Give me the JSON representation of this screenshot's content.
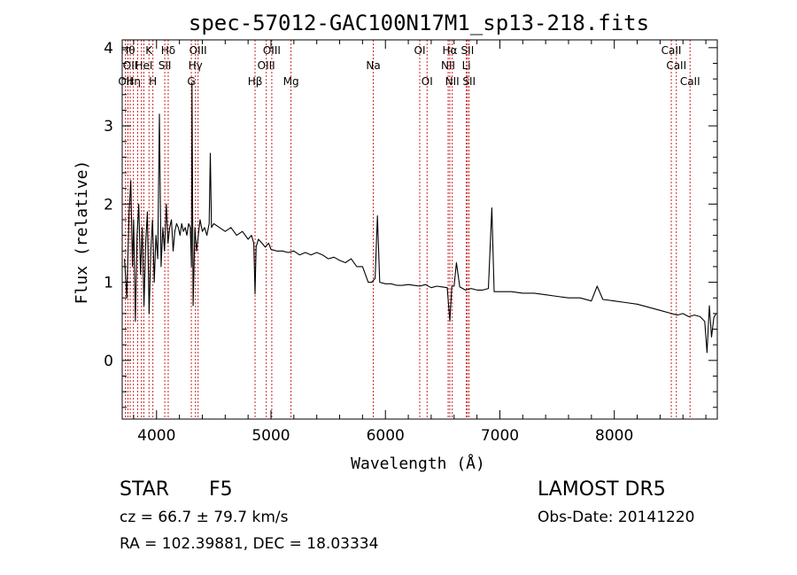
{
  "chart_data": {
    "type": "line",
    "title": "spec-57012-GAC100N17M1_sp13-218.fits",
    "xlabel": "Wavelength (Å)",
    "ylabel": "Flux (relative)",
    "xlim": [
      3700,
      8900
    ],
    "ylim": [
      -0.75,
      4.1
    ],
    "xticks": [
      "4000",
      "5000",
      "6000",
      "7000",
      "8000"
    ],
    "yticks": [
      "0",
      "1",
      "2",
      "3",
      "4"
    ],
    "line_color": "#000000",
    "marker_color": "#cc2222",
    "series": [
      {
        "x": [
          3720,
          3740,
          3760,
          3775,
          3790,
          3800,
          3815,
          3830,
          3845,
          3860,
          3875,
          3890,
          3905,
          3920,
          3935,
          3950,
          3965,
          3980,
          3995,
          4010,
          4025,
          4040,
          4055,
          4070,
          4085,
          4100,
          4115,
          4130,
          4145,
          4160,
          4175,
          4190,
          4205,
          4220,
          4235,
          4250,
          4265,
          4280,
          4295,
          4305,
          4310,
          4320,
          4335,
          4340,
          4350,
          4380,
          4400,
          4420,
          4440,
          4460,
          4470,
          4480,
          4500,
          4550,
          4600,
          4650,
          4700,
          4750,
          4800,
          4830,
          4850,
          4861,
          4870,
          4890,
          4920,
          4950,
          4980,
          5000,
          5050,
          5100,
          5150,
          5200,
          5250,
          5300,
          5350,
          5400,
          5450,
          5500,
          5550,
          5600,
          5650,
          5700,
          5750,
          5800,
          5850,
          5880,
          5910,
          5930,
          5950,
          6000,
          6050,
          6100,
          6150,
          6200,
          6250,
          6300,
          6350,
          6400,
          6450,
          6500,
          6540,
          6563,
          6580,
          6600,
          6620,
          6650,
          6700,
          6750,
          6800,
          6850,
          6900,
          6930,
          6950,
          6970,
          7000,
          7100,
          7200,
          7300,
          7400,
          7500,
          7600,
          7700,
          7800,
          7850,
          7900,
          8000,
          8100,
          8200,
          8300,
          8400,
          8500,
          8550,
          8600,
          8650,
          8700,
          8750,
          8790,
          8810,
          8830,
          8850,
          8870,
          8890
        ],
        "y": [
          1.3,
          0.8,
          1.9,
          2.3,
          1.2,
          1.8,
          0.5,
          1.6,
          2.0,
          1.1,
          1.7,
          0.7,
          1.5,
          1.9,
          0.6,
          1.4,
          1.8,
          1.0,
          1.6,
          1.3,
          3.15,
          1.2,
          1.7,
          1.4,
          2.0,
          1.5,
          1.7,
          1.8,
          1.4,
          1.65,
          1.75,
          1.7,
          1.6,
          1.75,
          1.65,
          1.7,
          1.6,
          1.75,
          1.7,
          1.2,
          3.55,
          0.7,
          1.7,
          1.6,
          1.4,
          1.8,
          1.65,
          1.7,
          1.6,
          1.75,
          2.65,
          1.7,
          1.75,
          1.7,
          1.65,
          1.7,
          1.6,
          1.65,
          1.55,
          1.6,
          1.5,
          0.85,
          1.45,
          1.55,
          1.5,
          1.45,
          1.5,
          1.42,
          1.4,
          1.4,
          1.38,
          1.4,
          1.35,
          1.38,
          1.35,
          1.38,
          1.35,
          1.3,
          1.32,
          1.28,
          1.25,
          1.3,
          1.2,
          1.2,
          1.0,
          1.0,
          1.05,
          1.85,
          1.0,
          0.98,
          0.98,
          0.96,
          0.96,
          0.97,
          0.96,
          0.95,
          0.97,
          0.93,
          0.95,
          0.94,
          0.93,
          0.5,
          0.95,
          0.95,
          1.25,
          0.94,
          0.9,
          0.92,
          0.9,
          0.9,
          0.92,
          1.95,
          0.88,
          0.88,
          0.88,
          0.88,
          0.86,
          0.86,
          0.84,
          0.82,
          0.8,
          0.8,
          0.76,
          0.95,
          0.78,
          0.76,
          0.74,
          0.72,
          0.68,
          0.64,
          0.6,
          0.58,
          0.6,
          0.56,
          0.58,
          0.56,
          0.5,
          0.1,
          0.7,
          0.3,
          0.55,
          0.6
        ]
      }
    ],
    "lines": [
      {
        "x": 3728,
        "label": "OII",
        "row": 2
      },
      {
        "x": 3750,
        "label": "Hθ",
        "row": 0
      },
      {
        "x": 3770,
        "label": "OII",
        "row": 1
      },
      {
        "x": 3798,
        "label": "Hη",
        "row": 2
      },
      {
        "x": 3835,
        "label": "",
        "row": 0
      },
      {
        "x": 3868,
        "label": "",
        "row": 0
      },
      {
        "x": 3889,
        "label": "HeI",
        "row": 1
      },
      {
        "x": 3934,
        "label": "K",
        "row": 0
      },
      {
        "x": 3968,
        "label": "H",
        "row": 2
      },
      {
        "x": 4072,
        "label": "SII",
        "row": 1
      },
      {
        "x": 4102,
        "label": "Hδ",
        "row": 0
      },
      {
        "x": 4304,
        "label": "G",
        "row": 2
      },
      {
        "x": 4340,
        "label": "Hγ",
        "row": 1
      },
      {
        "x": 4363,
        "label": "OIII",
        "row": 0
      },
      {
        "x": 4861,
        "label": "Hβ",
        "row": 2
      },
      {
        "x": 4959,
        "label": "OIII",
        "row": 1
      },
      {
        "x": 5007,
        "label": "OIII",
        "row": 0
      },
      {
        "x": 5175,
        "label": "Mg",
        "row": 2
      },
      {
        "x": 5894,
        "label": "Na",
        "row": 1
      },
      {
        "x": 6300,
        "label": "OI",
        "row": 0
      },
      {
        "x": 6364,
        "label": "OI",
        "row": 2
      },
      {
        "x": 6548,
        "label": "NII",
        "row": 1
      },
      {
        "x": 6563,
        "label": "Hα",
        "row": 0
      },
      {
        "x": 6584,
        "label": "NII",
        "row": 2
      },
      {
        "x": 6707,
        "label": "Li",
        "row": 1
      },
      {
        "x": 6717,
        "label": "SII",
        "row": 0
      },
      {
        "x": 6731,
        "label": "SII",
        "row": 2
      },
      {
        "x": 8498,
        "label": "CaII",
        "row": 0
      },
      {
        "x": 8542,
        "label": "CaII",
        "row": 1
      },
      {
        "x": 8662,
        "label": "CaII",
        "row": 2
      }
    ]
  },
  "info": {
    "class": "STAR",
    "subclass": "F5",
    "survey": "LAMOST DR5",
    "cz": "cz = 66.7 ± 79.7 km/s",
    "obsdate": "Obs-Date: 20141220",
    "radec": "RA = 102.39881, DEC =  18.03334"
  }
}
